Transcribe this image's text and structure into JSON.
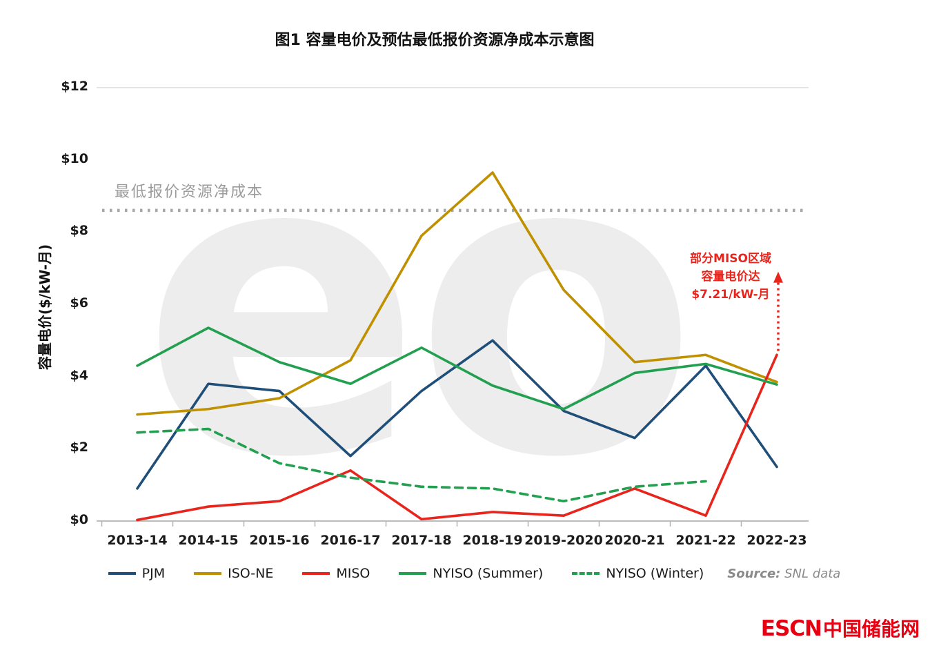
{
  "title": "图1 容量电价及预估最低报价资源净成本示意图",
  "chart_data": {
    "type": "line",
    "title": "图1 容量电价及预估最低报价资源净成本示意图",
    "xlabel": "",
    "ylabel": "容量电价($/kW-月)",
    "ylim": [
      0,
      12
    ],
    "y_ticks": [
      0,
      2,
      4,
      6,
      8,
      10,
      12
    ],
    "y_tick_labels": [
      "$0",
      "$2",
      "$4",
      "$6",
      "$8",
      "$10",
      "$12"
    ],
    "categories": [
      "2013-14",
      "2014-15",
      "2015-16",
      "2016-17",
      "2017-18",
      "2018-19",
      "2019-2020",
      "2020-21",
      "2021-22",
      "2022-23"
    ],
    "grid": "top-line-only",
    "legend_position": "bottom",
    "threshold": {
      "value": 8.6,
      "label": "最低报价资源净成本",
      "color": "#a6a6a6",
      "style": "dotted"
    },
    "series": [
      {
        "name": "PJM",
        "color": "#1f4e79",
        "dash": null,
        "values": [
          0.9,
          3.8,
          3.6,
          1.8,
          3.6,
          5.0,
          3.05,
          2.3,
          4.3,
          1.5
        ]
      },
      {
        "name": "ISO-NE",
        "color": "#bf9000",
        "dash": null,
        "values": [
          2.95,
          3.1,
          3.4,
          4.45,
          7.9,
          9.65,
          6.4,
          4.4,
          4.6,
          3.85
        ]
      },
      {
        "name": "MISO",
        "color": "#e8251d",
        "dash": null,
        "values": [
          0.03,
          0.4,
          0.55,
          1.4,
          0.05,
          0.25,
          0.15,
          0.9,
          0.15,
          4.6
        ]
      },
      {
        "name": "NYISO (Summer)",
        "color": "#22a050",
        "dash": null,
        "values": [
          4.3,
          5.35,
          4.4,
          3.8,
          4.8,
          3.75,
          3.1,
          4.1,
          4.35,
          3.78
        ]
      },
      {
        "name": "NYISO (Winter)",
        "color": "#22a050",
        "dash": "11 8",
        "values": [
          2.45,
          2.55,
          1.6,
          1.2,
          0.95,
          0.9,
          0.55,
          0.95,
          1.1,
          null
        ]
      }
    ],
    "annotation": {
      "lines": [
        "部分MISO区域",
        "容量电价达",
        "$7.21/kW-月"
      ],
      "value": 7.21,
      "color": "#e8251d"
    },
    "watermark": "eo"
  },
  "source": {
    "label": "Source:",
    "text": "SNL data"
  },
  "logo": {
    "en": "ESCN",
    "cn": "中国储能网"
  }
}
